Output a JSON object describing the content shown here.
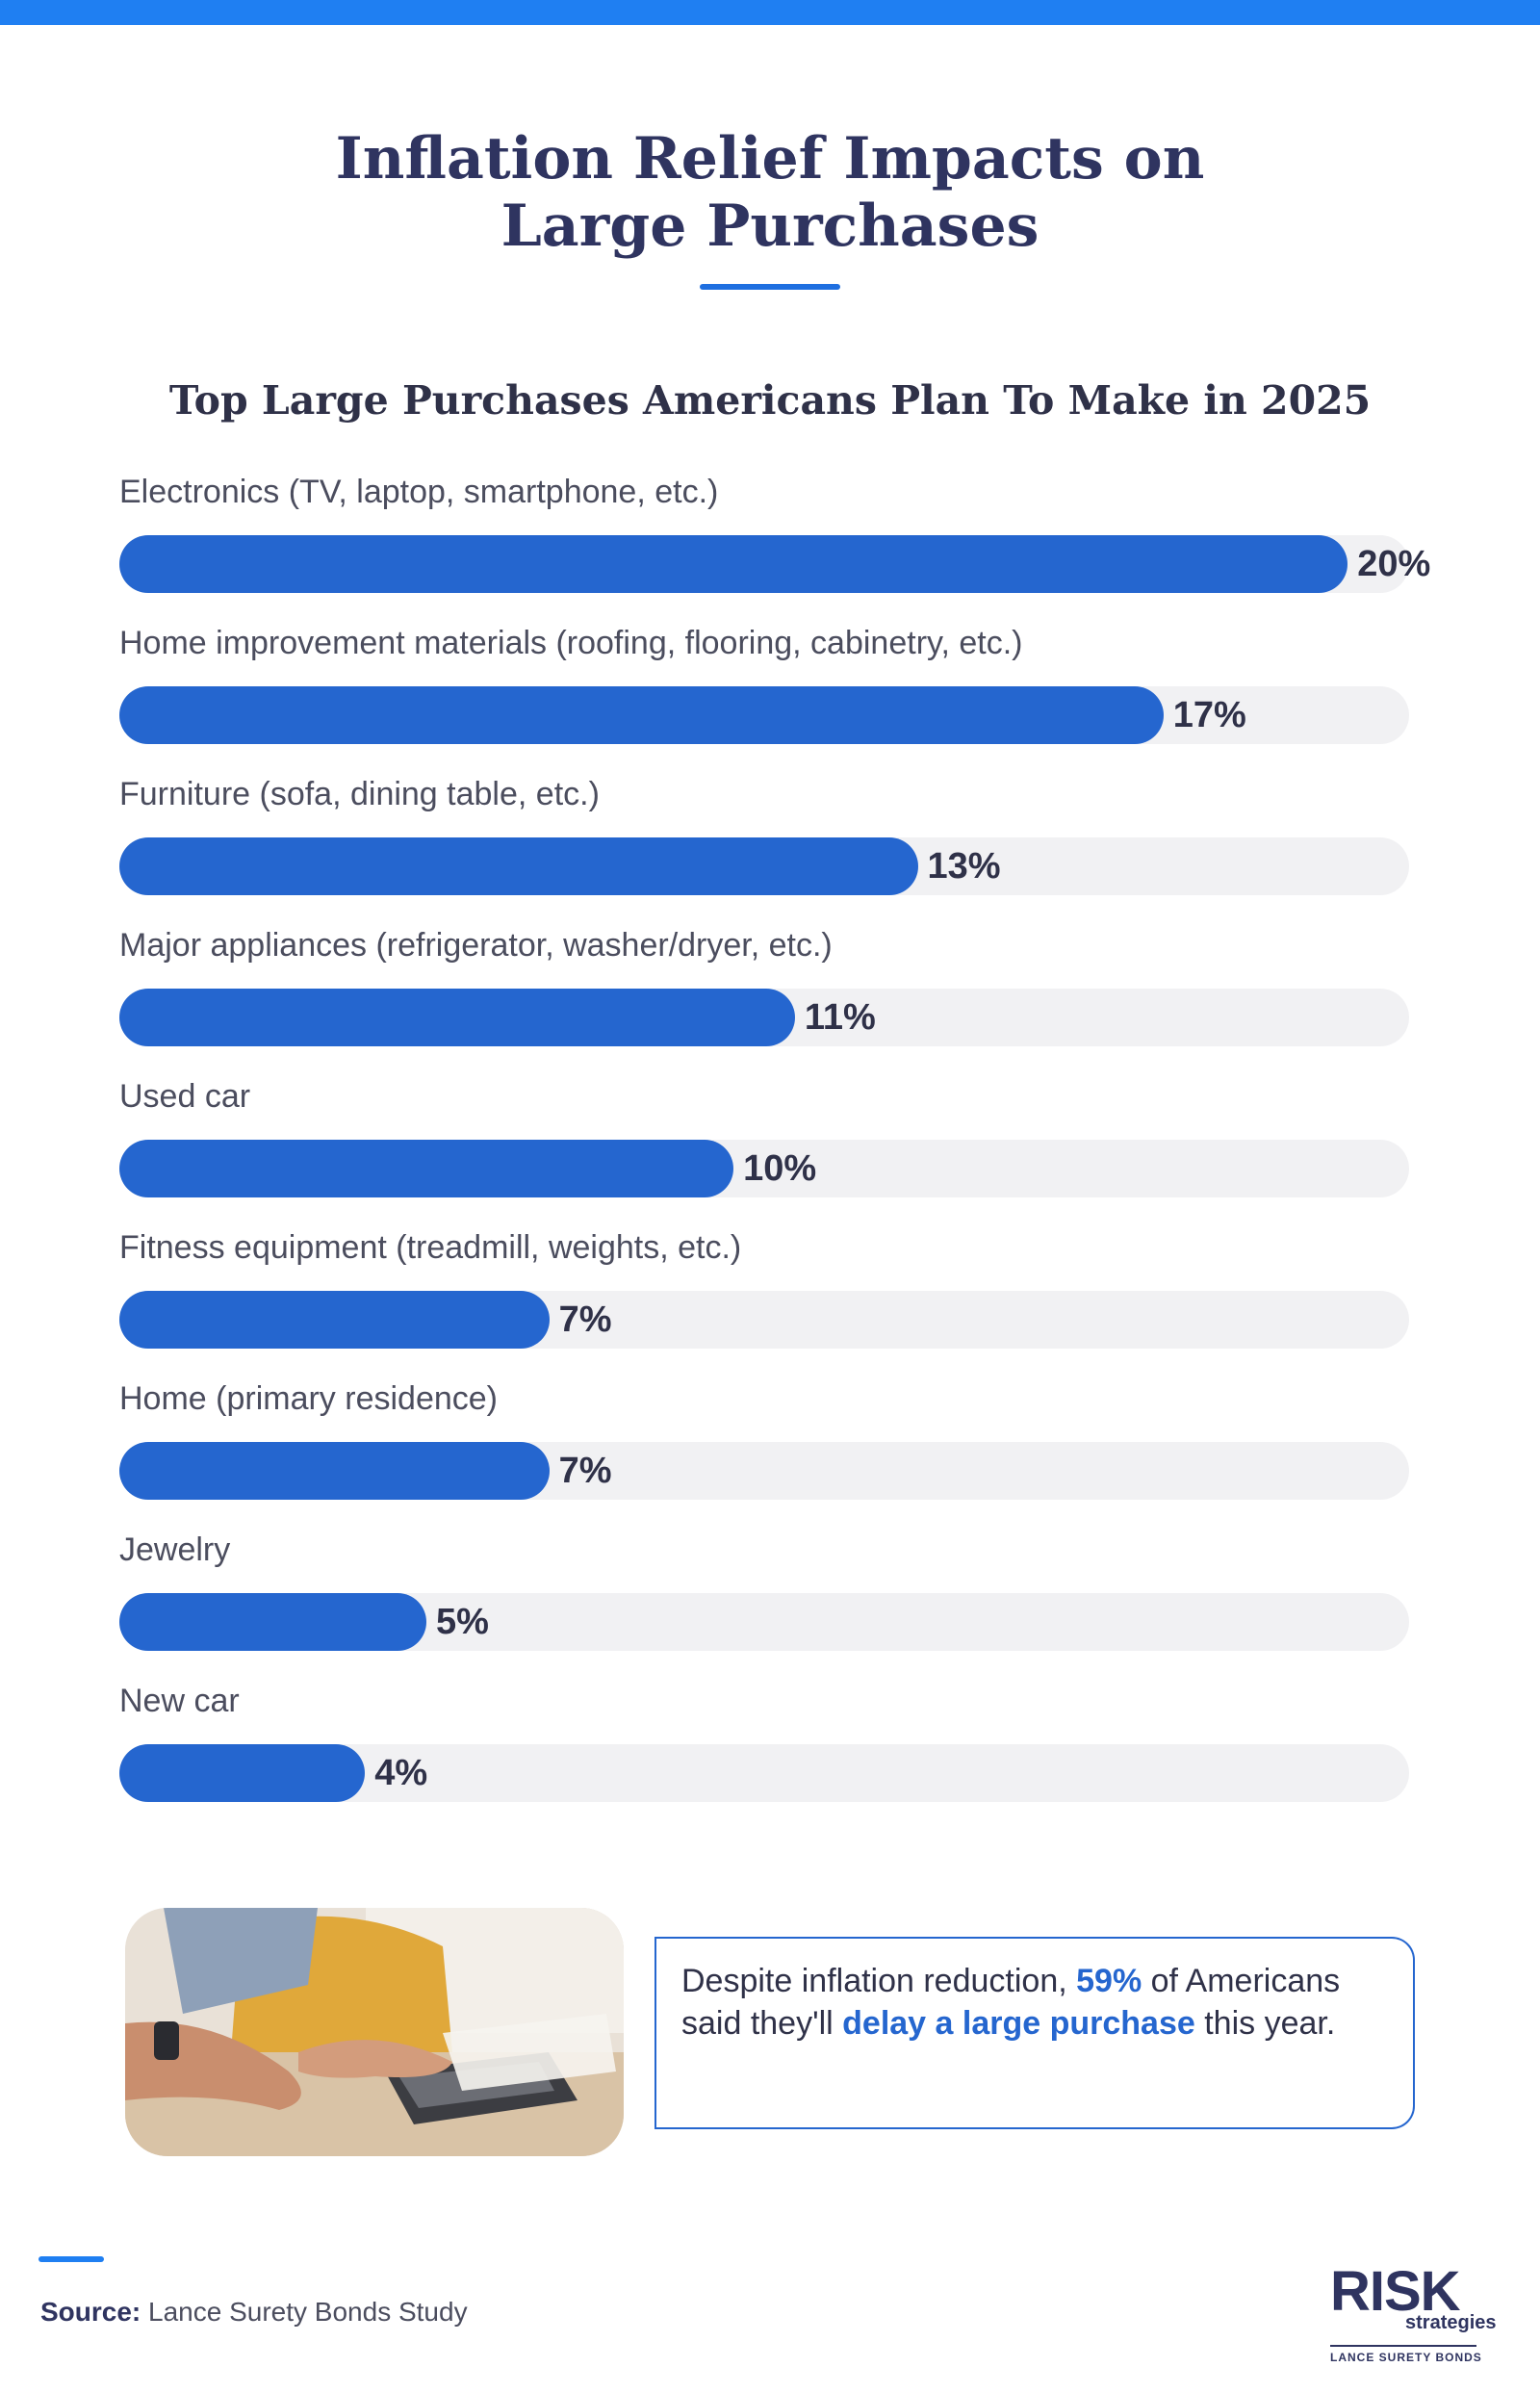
{
  "title": {
    "line1": "Inflation Relief Impacts on",
    "line2": "Large Purchases"
  },
  "chart_data": {
    "type": "bar",
    "orientation": "horizontal",
    "title": "Top Large Purchases Americans Plan To Make in 2025",
    "categories": [
      "Electronics (TV, laptop, smartphone, etc.)",
      "Home improvement materials (roofing, flooring, cabinetry, etc.)",
      "Furniture (sofa, dining table, etc.)",
      "Major appliances (refrigerator, washer/dryer, etc.)",
      "Used car",
      "Fitness equipment (treadmill, weights, etc.)",
      "Home (primary residence)",
      "Jewelry",
      "New car"
    ],
    "values": [
      20,
      17,
      13,
      11,
      10,
      7,
      7,
      5,
      4
    ],
    "value_labels": [
      "20%",
      "17%",
      "13%",
      "11%",
      "10%",
      "7%",
      "7%",
      "5%",
      "4%"
    ],
    "xlim": [
      0,
      21
    ],
    "colors": {
      "fill": "#2566cf",
      "track": "#f1f1f3"
    }
  },
  "callout": {
    "pre": "Despite inflation reduction, ",
    "stat": "59%",
    "mid": " of Americans said they'll ",
    "highlight": "delay a large purchase",
    "post": " this year."
  },
  "source": {
    "label": "Source:",
    "text": "Lance Surety Bonds Study"
  },
  "logo": {
    "main": "RISK",
    "sub": "strategies",
    "tagline": "LANCE SURETY BONDS"
  },
  "colors": {
    "accent": "#1f7ff2",
    "bar": "#2566cf",
    "heading": "#2f3460"
  }
}
